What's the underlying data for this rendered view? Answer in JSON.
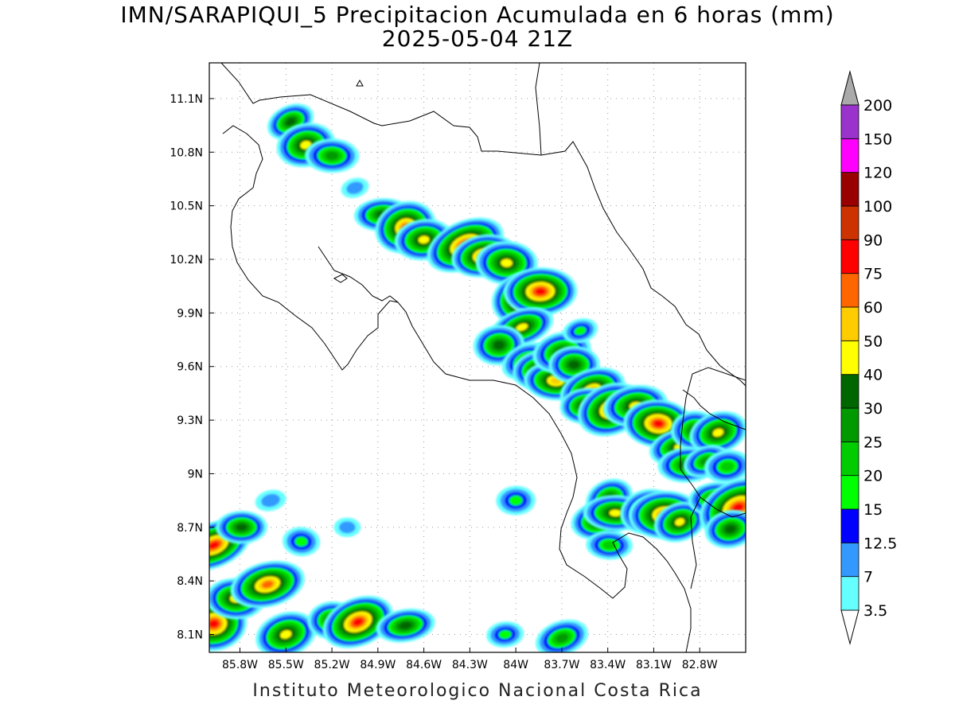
{
  "header": {
    "title": "IMN/SARAPIQUI_5 Precipitacion Acumulada en 6 horas (mm)",
    "subtitle": "2025-05-04 21Z"
  },
  "footer": {
    "credit": "Instituto Meteorologico Nacional Costa Rica"
  },
  "axes": {
    "lon_ticks": [
      "85.8W",
      "85.5W",
      "85.2W",
      "84.9W",
      "84.6W",
      "84.3W",
      "84W",
      "83.7W",
      "83.4W",
      "83.1W",
      "82.8W"
    ],
    "lat_ticks": [
      "11.1N",
      "10.8N",
      "10.5N",
      "10.2N",
      "9.9N",
      "9.6N",
      "9.3N",
      "9N",
      "8.7N",
      "8.4N",
      "8.1N"
    ],
    "lon_range": [
      -86.0,
      -82.5
    ],
    "lat_range": [
      8.0,
      11.3
    ],
    "grid": "dotted"
  },
  "legend": {
    "orientation": "vertical",
    "levels": [
      {
        "label": "3.5",
        "color": "#66ffff"
      },
      {
        "label": "7",
        "color": "#3399ff"
      },
      {
        "label": "12.5",
        "color": "#0000ff"
      },
      {
        "label": "15",
        "color": "#00ff00"
      },
      {
        "label": "20",
        "color": "#00cc00"
      },
      {
        "label": "25",
        "color": "#009900"
      },
      {
        "label": "30",
        "color": "#006600"
      },
      {
        "label": "40",
        "color": "#ffff00"
      },
      {
        "label": "50",
        "color": "#ffcc00"
      },
      {
        "label": "60",
        "color": "#ff6600"
      },
      {
        "label": "75",
        "color": "#ff0000"
      },
      {
        "label": "90",
        "color": "#cc3300"
      },
      {
        "label": "100",
        "color": "#990000"
      },
      {
        "label": "120",
        "color": "#ff00ff"
      },
      {
        "label": "150",
        "color": "#9933cc"
      },
      {
        "label": "200",
        "color": "#f2f2f2"
      }
    ],
    "over_color": "#aaaaaa",
    "under_color": "#ffffff"
  },
  "map": {
    "coastline_color": "#000000",
    "precip_cells": [
      {
        "lon": -85.47,
        "lat": 10.97,
        "mm": 30
      },
      {
        "lon": -85.37,
        "lat": 10.84,
        "mm": 40
      },
      {
        "lon": -85.2,
        "lat": 10.78,
        "mm": 25
      },
      {
        "lon": -85.05,
        "lat": 10.6,
        "mm": 7
      },
      {
        "lon": -84.87,
        "lat": 10.45,
        "mm": 30
      },
      {
        "lon": -84.72,
        "lat": 10.38,
        "mm": 60
      },
      {
        "lon": -84.6,
        "lat": 10.31,
        "mm": 40
      },
      {
        "lon": -84.33,
        "lat": 10.28,
        "mm": 75
      },
      {
        "lon": -84.21,
        "lat": 10.22,
        "mm": 60
      },
      {
        "lon": -84.06,
        "lat": 10.18,
        "mm": 40
      },
      {
        "lon": -83.93,
        "lat": 9.98,
        "mm": 90
      },
      {
        "lon": -83.84,
        "lat": 10.02,
        "mm": 75
      },
      {
        "lon": -83.96,
        "lat": 9.82,
        "mm": 40
      },
      {
        "lon": -84.11,
        "lat": 9.72,
        "mm": 30
      },
      {
        "lon": -83.93,
        "lat": 9.63,
        "mm": 25
      },
      {
        "lon": -83.85,
        "lat": 9.58,
        "mm": 40
      },
      {
        "lon": -83.74,
        "lat": 9.52,
        "mm": 50
      },
      {
        "lon": -83.7,
        "lat": 9.68,
        "mm": 30
      },
      {
        "lon": -83.62,
        "lat": 9.61,
        "mm": 30
      },
      {
        "lon": -83.5,
        "lat": 9.47,
        "mm": 50
      },
      {
        "lon": -83.54,
        "lat": 9.38,
        "mm": 40
      },
      {
        "lon": -83.38,
        "lat": 9.36,
        "mm": 60
      },
      {
        "lon": -83.22,
        "lat": 9.38,
        "mm": 40
      },
      {
        "lon": -83.07,
        "lat": 9.28,
        "mm": 75
      },
      {
        "lon": -82.93,
        "lat": 9.15,
        "mm": 40
      },
      {
        "lon": -82.83,
        "lat": 9.24,
        "mm": 30
      },
      {
        "lon": -82.68,
        "lat": 9.23,
        "mm": 40
      },
      {
        "lon": -82.88,
        "lat": 9.05,
        "mm": 30
      },
      {
        "lon": -82.76,
        "lat": 9.07,
        "mm": 25
      },
      {
        "lon": -82.62,
        "lat": 9.04,
        "mm": 20
      },
      {
        "lon": -83.39,
        "lat": 8.86,
        "mm": 30
      },
      {
        "lon": -83.45,
        "lat": 8.74,
        "mm": 40
      },
      {
        "lon": -83.35,
        "lat": 8.78,
        "mm": 40
      },
      {
        "lon": -83.14,
        "lat": 8.79,
        "mm": 40
      },
      {
        "lon": -83.03,
        "lat": 8.77,
        "mm": 60
      },
      {
        "lon": -82.93,
        "lat": 8.73,
        "mm": 40
      },
      {
        "lon": -82.7,
        "lat": 8.86,
        "mm": 30
      },
      {
        "lon": -82.55,
        "lat": 8.81,
        "mm": 75
      },
      {
        "lon": -82.6,
        "lat": 8.69,
        "mm": 30
      },
      {
        "lon": -83.39,
        "lat": 8.6,
        "mm": 20
      },
      {
        "lon": -83.58,
        "lat": 9.8,
        "mm": 15
      },
      {
        "lon": -84.0,
        "lat": 8.85,
        "mm": 15
      },
      {
        "lon": -83.7,
        "lat": 8.08,
        "mm": 25
      },
      {
        "lon": -84.07,
        "lat": 8.1,
        "mm": 15
      },
      {
        "lon": -85.97,
        "lat": 8.6,
        "mm": 75
      },
      {
        "lon": -85.97,
        "lat": 8.16,
        "mm": 75
      },
      {
        "lon": -85.83,
        "lat": 8.3,
        "mm": 40
      },
      {
        "lon": -85.62,
        "lat": 8.38,
        "mm": 60
      },
      {
        "lon": -85.79,
        "lat": 8.7,
        "mm": 30
      },
      {
        "lon": -85.5,
        "lat": 8.1,
        "mm": 40
      },
      {
        "lon": -85.2,
        "lat": 8.18,
        "mm": 30
      },
      {
        "lon": -85.03,
        "lat": 8.17,
        "mm": 75
      },
      {
        "lon": -84.72,
        "lat": 8.15,
        "mm": 30
      },
      {
        "lon": -85.4,
        "lat": 8.62,
        "mm": 15
      },
      {
        "lon": -85.6,
        "lat": 8.85,
        "mm": 7
      },
      {
        "lon": -85.1,
        "lat": 8.7,
        "mm": 7
      }
    ]
  }
}
